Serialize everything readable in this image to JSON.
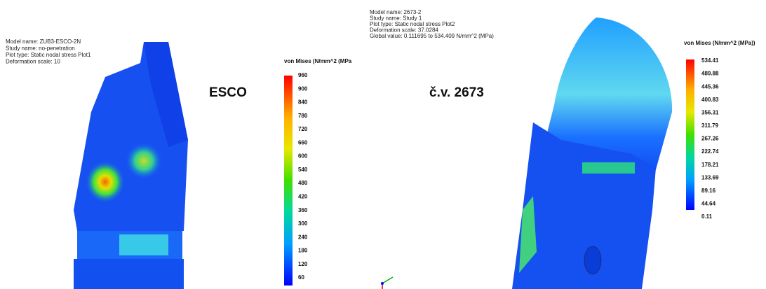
{
  "panels": [
    {
      "info": [
        "Model name: ZUB3-ESCO-2N",
        "Study name: no-penetration",
        "Plot type: Static nodal stress Plot1",
        "Deformation scale: 10"
      ],
      "label": "ESCO",
      "legend": {
        "title": "von Mises (N/mm^2 (MPa",
        "ticks": [
          960,
          900,
          840,
          780,
          720,
          660,
          600,
          540,
          480,
          420,
          360,
          300,
          240,
          180,
          120,
          60
        ]
      }
    },
    {
      "info": [
        "Model name: 2673-2",
        "Study name: Study 1",
        "Plot type: Static nodal stress Plot2",
        "Deformation scale: 37.0284",
        "Global value: 0.111695 to 534.409 N/mm^2 (MPa)"
      ],
      "label": "č.v.  2673",
      "legend": {
        "title": "von Mises (N/mm^2 (MPa))",
        "ticks": [
          534.41,
          489.88,
          445.36,
          400.83,
          356.31,
          311.79,
          267.26,
          222.74,
          178.21,
          133.69,
          89.16,
          44.64,
          0.11
        ]
      }
    }
  ]
}
